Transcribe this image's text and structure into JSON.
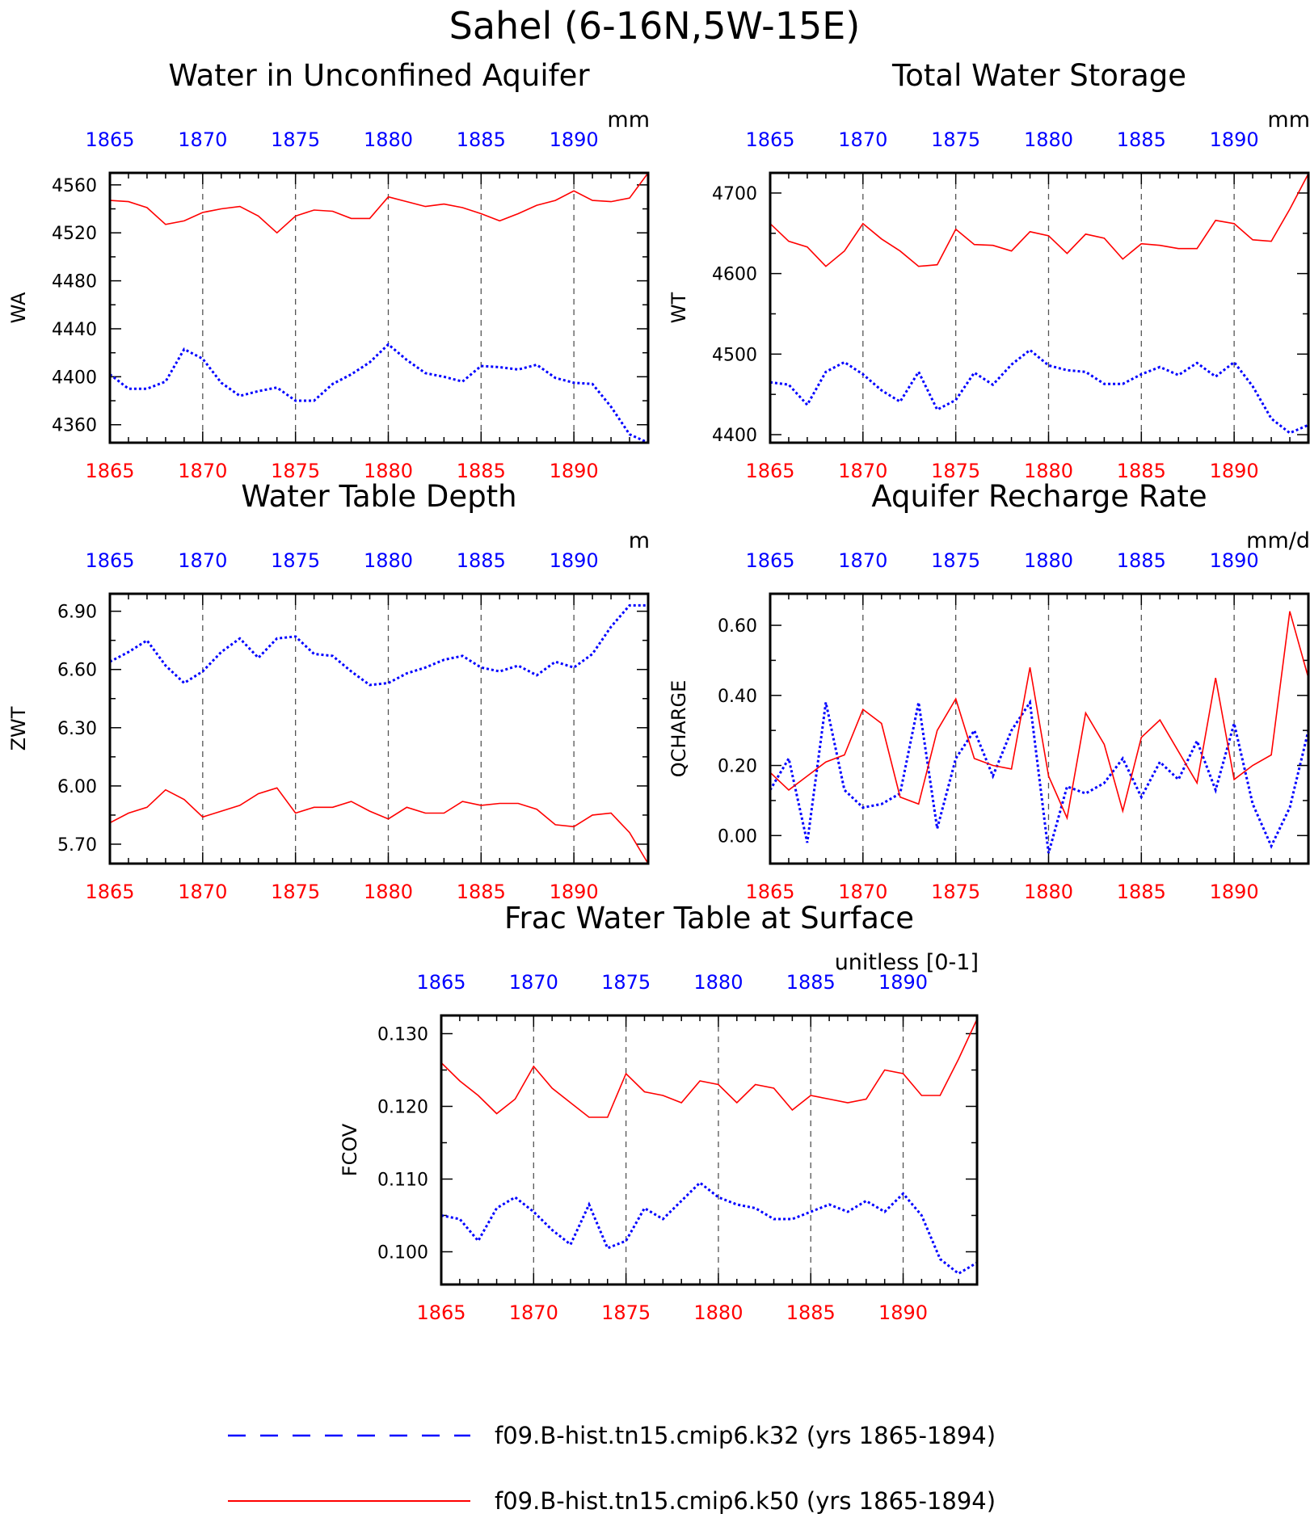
{
  "main_title": "Sahel (6-16N,5W-15E)",
  "legend": [
    {
      "label": "f09.B-hist.tn15.cmip6.k32 (yrs 1865-1894)",
      "color": "#0000ff",
      "style": "dashed"
    },
    {
      "label": "f09.B-hist.tn15.cmip6.k50 (yrs 1865-1894)",
      "color": "#ff0000",
      "style": "solid"
    }
  ],
  "colors": {
    "k32": "#0000ff",
    "k50": "#ff0000",
    "grid": "#555555"
  },
  "chart_data": [
    {
      "type": "line",
      "title": "Water in Unconfined Aquifer",
      "units": "mm",
      "ylabel": "WA",
      "xlim": [
        1865,
        1894
      ],
      "ylim": [
        4345,
        4570
      ],
      "yticks": [
        4360,
        4400,
        4440,
        4480,
        4520,
        4560
      ],
      "ytick_labels": [
        "4360",
        "4400",
        "4440",
        "4480",
        "4520",
        "4560"
      ],
      "xticks": [
        1865,
        1870,
        1875,
        1880,
        1885,
        1890
      ],
      "x": [
        1865,
        1866,
        1867,
        1868,
        1869,
        1870,
        1871,
        1872,
        1873,
        1874,
        1875,
        1876,
        1877,
        1878,
        1879,
        1880,
        1881,
        1882,
        1883,
        1884,
        1885,
        1886,
        1887,
        1888,
        1889,
        1890,
        1891,
        1892,
        1893,
        1894
      ],
      "series": [
        {
          "name": "f09.B-hist.tn15.cmip6.k32 (yrs 1865-1894)",
          "style": "dashed",
          "values": [
            4402,
            4390,
            4390,
            4396,
            4423,
            4415,
            4395,
            4384,
            4388,
            4391,
            4380,
            4380,
            4394,
            4402,
            4412,
            4427,
            4414,
            4403,
            4400,
            4396,
            4409,
            4408,
            4406,
            4410,
            4399,
            4395,
            4394,
            4375,
            4352,
            4345
          ]
        },
        {
          "name": "f09.B-hist.tn15.cmip6.k50 (yrs 1865-1894)",
          "style": "solid",
          "values": [
            4547,
            4546,
            4541,
            4527,
            4530,
            4537,
            4540,
            4542,
            4534,
            4520,
            4534,
            4539,
            4538,
            4532,
            4532,
            4550,
            4546,
            4542,
            4544,
            4541,
            4536,
            4530,
            4536,
            4543,
            4547,
            4555,
            4547,
            4546,
            4549,
            4570
          ]
        }
      ]
    },
    {
      "type": "line",
      "title": "Total Water Storage",
      "units": "mm",
      "ylabel": "WT",
      "xlim": [
        1865,
        1894
      ],
      "ylim": [
        4390,
        4725
      ],
      "yticks": [
        4400,
        4500,
        4600,
        4700
      ],
      "ytick_labels": [
        "4400",
        "4500",
        "4600",
        "4700"
      ],
      "xticks": [
        1865,
        1870,
        1875,
        1880,
        1885,
        1890
      ],
      "x": [
        1865,
        1866,
        1867,
        1868,
        1869,
        1870,
        1871,
        1872,
        1873,
        1874,
        1875,
        1876,
        1877,
        1878,
        1879,
        1880,
        1881,
        1882,
        1883,
        1884,
        1885,
        1886,
        1887,
        1888,
        1889,
        1890,
        1891,
        1892,
        1893,
        1894
      ],
      "series": [
        {
          "name": "f09.B-hist.tn15.cmip6.k32 (yrs 1865-1894)",
          "style": "dashed",
          "values": [
            4465,
            4462,
            4437,
            4478,
            4490,
            4475,
            4455,
            4441,
            4478,
            4431,
            4443,
            4477,
            4462,
            4487,
            4505,
            4486,
            4480,
            4478,
            4463,
            4463,
            4475,
            4484,
            4474,
            4489,
            4472,
            4490,
            4460,
            4420,
            4402,
            4412
          ]
        },
        {
          "name": "f09.B-hist.tn15.cmip6.k50 (yrs 1865-1894)",
          "style": "solid",
          "values": [
            4662,
            4640,
            4633,
            4609,
            4628,
            4662,
            4643,
            4628,
            4609,
            4611,
            4655,
            4636,
            4635,
            4628,
            4652,
            4647,
            4625,
            4649,
            4644,
            4618,
            4637,
            4635,
            4631,
            4631,
            4666,
            4662,
            4642,
            4640,
            4680,
            4724
          ]
        }
      ]
    },
    {
      "type": "line",
      "title": "Water Table Depth",
      "units": "m",
      "ylabel": "ZWT",
      "xlim": [
        1865,
        1894
      ],
      "ylim": [
        5.6,
        6.99
      ],
      "yticks": [
        5.7,
        6.0,
        6.3,
        6.6,
        6.9
      ],
      "ytick_labels": [
        "5.70",
        "6.00",
        "6.30",
        "6.60",
        "6.90"
      ],
      "xticks": [
        1865,
        1870,
        1875,
        1880,
        1885,
        1890
      ],
      "x": [
        1865,
        1866,
        1867,
        1868,
        1869,
        1870,
        1871,
        1872,
        1873,
        1874,
        1875,
        1876,
        1877,
        1878,
        1879,
        1880,
        1881,
        1882,
        1883,
        1884,
        1885,
        1886,
        1887,
        1888,
        1889,
        1890,
        1891,
        1892,
        1893,
        1894
      ],
      "series": [
        {
          "name": "f09.B-hist.tn15.cmip6.k32 (yrs 1865-1894)",
          "style": "dashed",
          "values": [
            6.64,
            6.69,
            6.75,
            6.62,
            6.53,
            6.59,
            6.69,
            6.76,
            6.66,
            6.76,
            6.77,
            6.68,
            6.67,
            6.59,
            6.52,
            6.53,
            6.58,
            6.61,
            6.65,
            6.67,
            6.61,
            6.59,
            6.62,
            6.57,
            6.64,
            6.61,
            6.68,
            6.82,
            6.93,
            6.93
          ]
        },
        {
          "name": "f09.B-hist.tn15.cmip6.k50 (yrs 1865-1894)",
          "style": "solid",
          "values": [
            5.81,
            5.86,
            5.89,
            5.98,
            5.93,
            5.84,
            5.87,
            5.9,
            5.96,
            5.99,
            5.86,
            5.89,
            5.89,
            5.92,
            5.87,
            5.83,
            5.89,
            5.86,
            5.86,
            5.92,
            5.9,
            5.91,
            5.91,
            5.88,
            5.8,
            5.79,
            5.85,
            5.86,
            5.76,
            5.6
          ]
        }
      ]
    },
    {
      "type": "line",
      "title": "Aquifer Recharge Rate",
      "units": "mm/d",
      "ylabel": "QCHARGE",
      "xlim": [
        1865,
        1894
      ],
      "ylim": [
        -0.08,
        0.69
      ],
      "yticks": [
        0.0,
        0.2,
        0.4,
        0.6
      ],
      "ytick_labels": [
        "0.00",
        "0.20",
        "0.40",
        "0.60"
      ],
      "xticks": [
        1865,
        1870,
        1875,
        1880,
        1885,
        1890
      ],
      "x": [
        1865,
        1866,
        1867,
        1868,
        1869,
        1870,
        1871,
        1872,
        1873,
        1874,
        1875,
        1876,
        1877,
        1878,
        1879,
        1880,
        1881,
        1882,
        1883,
        1884,
        1885,
        1886,
        1887,
        1888,
        1889,
        1890,
        1891,
        1892,
        1893,
        1894
      ],
      "series": [
        {
          "name": "f09.B-hist.tn15.cmip6.k32 (yrs 1865-1894)",
          "style": "dashed",
          "values": [
            0.13,
            0.22,
            -0.02,
            0.38,
            0.13,
            0.08,
            0.09,
            0.12,
            0.38,
            0.02,
            0.22,
            0.3,
            0.17,
            0.3,
            0.38,
            -0.05,
            0.14,
            0.12,
            0.15,
            0.22,
            0.11,
            0.21,
            0.16,
            0.27,
            0.13,
            0.32,
            0.09,
            -0.03,
            0.08,
            0.3
          ]
        },
        {
          "name": "f09.B-hist.tn15.cmip6.k50 (yrs 1865-1894)",
          "style": "solid",
          "values": [
            0.18,
            0.13,
            0.17,
            0.21,
            0.23,
            0.36,
            0.32,
            0.11,
            0.09,
            0.3,
            0.39,
            0.22,
            0.2,
            0.19,
            0.48,
            0.17,
            0.05,
            0.35,
            0.26,
            0.07,
            0.28,
            0.33,
            0.24,
            0.15,
            0.45,
            0.16,
            0.2,
            0.23,
            0.64,
            0.45
          ]
        }
      ]
    },
    {
      "type": "line",
      "title": "Frac Water Table at Surface",
      "units": "unitless [0-1]",
      "ylabel": "FCOV",
      "xlim": [
        1865,
        1894
      ],
      "ylim": [
        0.0955,
        0.1325
      ],
      "yticks": [
        0.1,
        0.11,
        0.12,
        0.13
      ],
      "ytick_labels": [
        "0.100",
        "0.110",
        "0.120",
        "0.130"
      ],
      "xticks": [
        1865,
        1870,
        1875,
        1880,
        1885,
        1890
      ],
      "x": [
        1865,
        1866,
        1867,
        1868,
        1869,
        1870,
        1871,
        1872,
        1873,
        1874,
        1875,
        1876,
        1877,
        1878,
        1879,
        1880,
        1881,
        1882,
        1883,
        1884,
        1885,
        1886,
        1887,
        1888,
        1889,
        1890,
        1891,
        1892,
        1893,
        1894
      ],
      "series": [
        {
          "name": "f09.B-hist.tn15.cmip6.k32 (yrs 1865-1894)",
          "style": "dashed",
          "values": [
            0.105,
            0.1045,
            0.1015,
            0.106,
            0.1075,
            0.1055,
            0.103,
            0.101,
            0.1065,
            0.1005,
            0.1015,
            0.106,
            0.1045,
            0.107,
            0.1095,
            0.1075,
            0.1065,
            0.106,
            0.1045,
            0.1045,
            0.1055,
            0.1065,
            0.1055,
            0.107,
            0.1055,
            0.108,
            0.105,
            0.099,
            0.097,
            0.0985
          ]
        },
        {
          "name": "f09.B-hist.tn15.cmip6.k50 (yrs 1865-1894)",
          "style": "solid",
          "values": [
            0.126,
            0.1235,
            0.1215,
            0.119,
            0.121,
            0.1255,
            0.1225,
            0.1205,
            0.1185,
            0.1185,
            0.1245,
            0.122,
            0.1215,
            0.1205,
            0.1235,
            0.123,
            0.1205,
            0.123,
            0.1225,
            0.1195,
            0.1215,
            0.121,
            0.1205,
            0.121,
            0.125,
            0.1245,
            0.1215,
            0.1215,
            0.1265,
            0.132
          ]
        }
      ]
    }
  ]
}
